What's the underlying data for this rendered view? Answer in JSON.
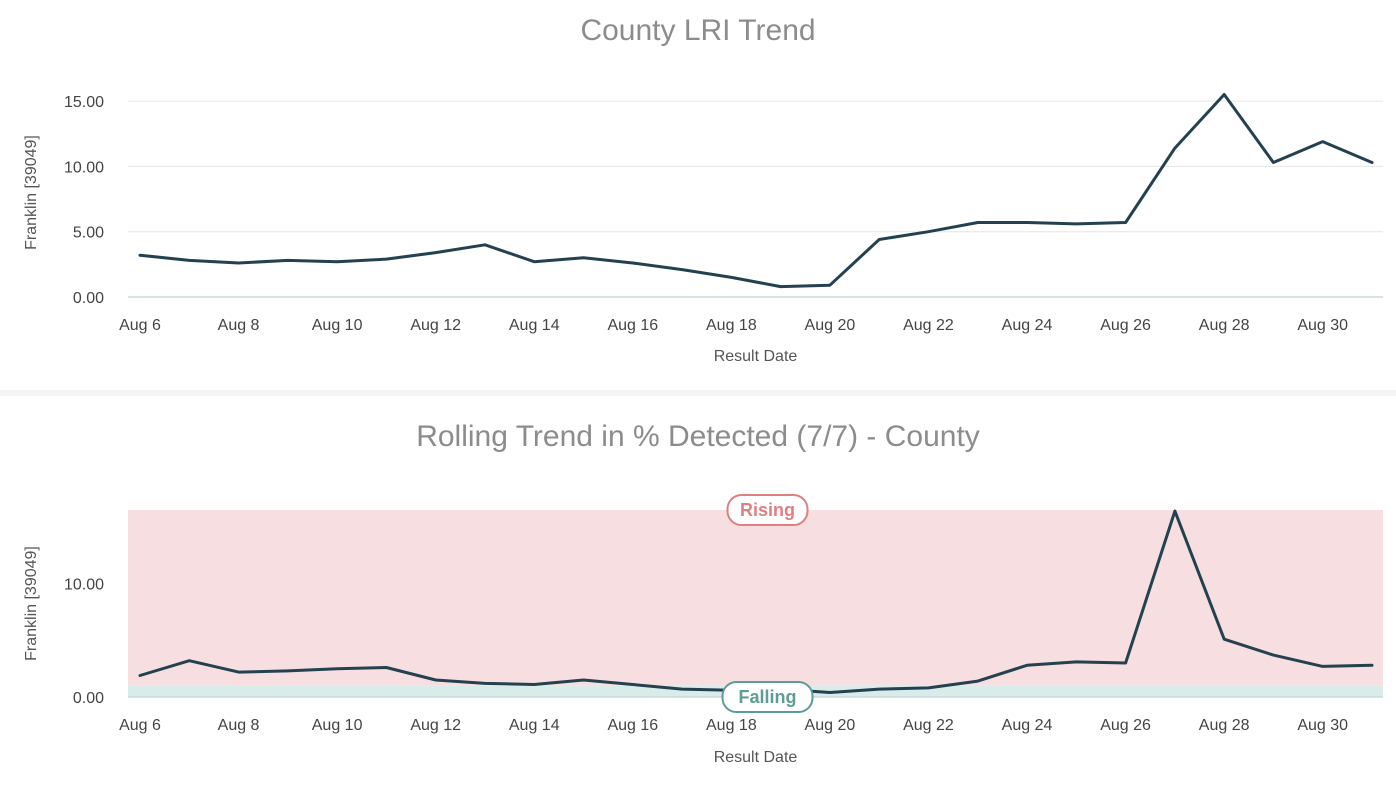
{
  "chart_data": [
    {
      "type": "line",
      "title": "County LRI Trend",
      "xlabel": "Result Date",
      "ylabel": "Franklin [39049]",
      "x": [
        "Aug 6",
        "Aug 7",
        "Aug 8",
        "Aug 9",
        "Aug 10",
        "Aug 11",
        "Aug 12",
        "Aug 13",
        "Aug 14",
        "Aug 15",
        "Aug 16",
        "Aug 17",
        "Aug 18",
        "Aug 19",
        "Aug 20",
        "Aug 21",
        "Aug 22",
        "Aug 23",
        "Aug 24",
        "Aug 25",
        "Aug 26",
        "Aug 27",
        "Aug 28",
        "Aug 29",
        "Aug 30",
        "Aug 31"
      ],
      "x_tick_labels": [
        "Aug 6",
        "Aug 8",
        "Aug 10",
        "Aug 12",
        "Aug 14",
        "Aug 16",
        "Aug 18",
        "Aug 20",
        "Aug 22",
        "Aug 24",
        "Aug 26",
        "Aug 28",
        "Aug 30"
      ],
      "y_tick_labels": [
        "0.00",
        "5.00",
        "10.00",
        "15.00"
      ],
      "ylim": [
        0,
        16
      ],
      "grid": true,
      "series": [
        {
          "color": "#24414f",
          "values": [
            3.2,
            2.8,
            2.6,
            2.8,
            2.7,
            2.9,
            3.4,
            4.0,
            2.7,
            3.0,
            2.6,
            2.1,
            1.5,
            0.8,
            0.9,
            4.4,
            5.0,
            5.7,
            5.7,
            5.6,
            5.7,
            11.4,
            15.5,
            10.3,
            11.9,
            10.3
          ]
        }
      ]
    },
    {
      "type": "line",
      "title": "Rolling Trend in % Detected (7/7) - County",
      "xlabel": "Result Date",
      "ylabel": "Franklin [39049]",
      "x": [
        "Aug 6",
        "Aug 7",
        "Aug 8",
        "Aug 9",
        "Aug 10",
        "Aug 11",
        "Aug 12",
        "Aug 13",
        "Aug 14",
        "Aug 15",
        "Aug 16",
        "Aug 17",
        "Aug 18",
        "Aug 19",
        "Aug 20",
        "Aug 21",
        "Aug 22",
        "Aug 23",
        "Aug 24",
        "Aug 25",
        "Aug 26",
        "Aug 27",
        "Aug 28",
        "Aug 29",
        "Aug 30",
        "Aug 31"
      ],
      "x_tick_labels": [
        "Aug 6",
        "Aug 8",
        "Aug 10",
        "Aug 12",
        "Aug 14",
        "Aug 16",
        "Aug 18",
        "Aug 20",
        "Aug 22",
        "Aug 24",
        "Aug 26",
        "Aug 28",
        "Aug 30"
      ],
      "y_tick_labels": [
        "0.00",
        "10.00"
      ],
      "ylim": [
        0,
        16.5
      ],
      "grid": true,
      "bands": [
        {
          "label": "Rising",
          "from": 1.0,
          "to": 16.5,
          "color": "#f7dfe1",
          "label_color": "#e07f80"
        },
        {
          "label": "Falling",
          "from": 0,
          "to": 1.0,
          "color": "#d9ecea",
          "label_color": "#5e9c97"
        }
      ],
      "series": [
        {
          "color": "#24414f",
          "values": [
            1.9,
            3.2,
            2.2,
            2.3,
            2.5,
            2.6,
            1.5,
            1.2,
            1.1,
            1.5,
            1.1,
            0.7,
            0.6,
            0.7,
            0.4,
            0.7,
            0.8,
            1.4,
            2.8,
            3.1,
            3.0,
            16.4,
            5.1,
            3.7,
            2.7,
            2.8
          ]
        }
      ]
    }
  ]
}
